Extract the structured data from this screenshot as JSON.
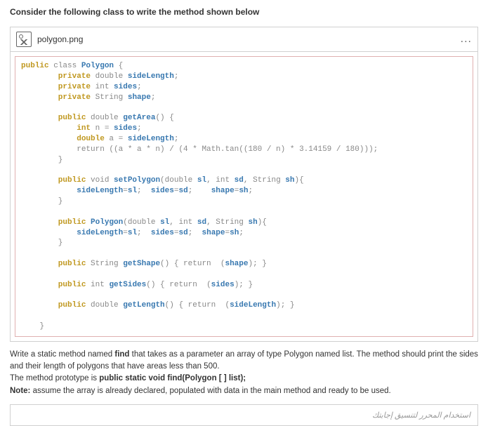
{
  "question": "Consider the following class to write the method shown below",
  "file": {
    "name": "polygon.png",
    "menu": "..."
  },
  "code": {
    "l1a": "public",
    "l1b": " class ",
    "l1c": "Polygon",
    "l1d": " {",
    "l2a": "        private",
    "l2b": " double ",
    "l2c": "sideLength",
    "l2d": ";",
    "l3a": "        private",
    "l3b": " int ",
    "l3c": "sides",
    "l3d": ";",
    "l4a": "        private",
    "l4b": " String ",
    "l4c": "shape",
    "l4d": ";",
    "blank1": "",
    "l5a": "        public",
    "l5b": " double ",
    "l5c": "getArea",
    "l5d": "() {",
    "l6a": "            int",
    "l6b": " n = ",
    "l6c": "sides",
    "l6d": ";",
    "l7a": "            double",
    "l7b": " a = ",
    "l7c": "sideLength",
    "l7d": ";",
    "l8": "            return ((a * a * n) / (4 * Math.tan((180 / n) * 3.14159 / 180)));",
    "l9": "        }",
    "blank2": "",
    "l10a": "        public",
    "l10b": " void ",
    "l10c": "setPolygon",
    "l10d": "(double ",
    "l10e": "sl",
    "l10f": ", int ",
    "l10g": "sd",
    "l10h": ", String ",
    "l10i": "sh",
    "l10j": "){",
    "l11a": "            sideLength",
    "l11b": "=",
    "l11c": "sl",
    "l11d": ";  ",
    "l11e": "sides",
    "l11f": "=",
    "l11g": "sd",
    "l11h": ";    ",
    "l11i": "shape",
    "l11j": "=",
    "l11k": "sh",
    "l11l": ";",
    "l12": "        }",
    "blank3": "",
    "l13a": "        public",
    "l13b": " ",
    "l13c": "Polygon",
    "l13d": "(double ",
    "l13e": "sl",
    "l13f": ", int ",
    "l13g": "sd",
    "l13h": ", String ",
    "l13i": "sh",
    "l13j": "){",
    "l14a": "            sideLength",
    "l14b": "=",
    "l14c": "sl",
    "l14d": ";  ",
    "l14e": "sides",
    "l14f": "=",
    "l14g": "sd",
    "l14h": ";  ",
    "l14i": "shape",
    "l14j": "=",
    "l14k": "sh",
    "l14l": ";",
    "l15": "        }",
    "blank4": "",
    "l16a": "        public",
    "l16b": " String ",
    "l16c": "getShape",
    "l16d": "() { return  (",
    "l16e": "shape",
    "l16f": "); }",
    "blank5": "",
    "l17a": "        public",
    "l17b": " int ",
    "l17c": "getSides",
    "l17d": "() { return  (",
    "l17e": "sides",
    "l17f": "); }",
    "blank6": "",
    "l18a": "        public",
    "l18b": " double ",
    "l18c": "getLength",
    "l18d": "() { return  (",
    "l18e": "sideLength",
    "l18f": "); }",
    "blank7": "",
    "l19": "    }"
  },
  "prompt": {
    "p1a": "Write a static method named ",
    "p1b": "find",
    "p1c": " that takes as a parameter an array of type Polygon named list. The method should print the sides and their length of polygons that have areas less than 500.",
    "p2a": "The method prototype is ",
    "p2b": "public static void find(Polygon [ ] list);",
    "p3a": "Note:",
    "p3b": " assume the array is already declared, populated with data in the main method and ready to be used."
  },
  "arabic": "استخدام المحرر لتنسيق إجابتك"
}
